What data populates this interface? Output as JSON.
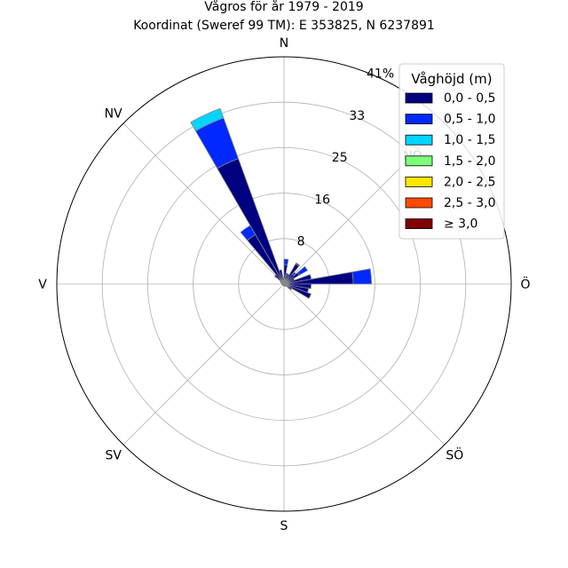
{
  "title_line1": "Vågros för år 1979 - 2019",
  "title_line2": "Koordinat (Sweref 99 TM): E 353825, N 6237891",
  "chart_data": {
    "type": "wind_rose",
    "directions": [
      "N",
      "NÖ",
      "Ö",
      "SÖ",
      "S",
      "SV",
      "V",
      "NV"
    ],
    "radial_ticks": [
      "8",
      "16",
      "25",
      "33",
      "41%"
    ],
    "rmax": 41,
    "bin_edges_deg": [
      0,
      10,
      20,
      30,
      40,
      50,
      60,
      70,
      80,
      90,
      100,
      110,
      120,
      130,
      140,
      150,
      160,
      170,
      180,
      190,
      200,
      210,
      220,
      230,
      240,
      250,
      260,
      270,
      280,
      290,
      300,
      310,
      320,
      330,
      340,
      350,
      360
    ],
    "legend_title": "Våghöjd (m)",
    "series": [
      {
        "name": "0,0 - 0,5",
        "color": "#000080",
        "values": [
          3.5,
          1.6,
          1.9,
          4.2,
          2.4,
          3.2,
          2.0,
          5.0,
          12.5,
          4.9,
          4.5,
          5.2,
          1.6,
          0.6,
          0.5,
          0.4,
          0.4,
          0.3,
          0.3,
          0.3,
          0.3,
          0.3,
          0.3,
          0.3,
          0.3,
          0.3,
          0.4,
          0.4,
          0.5,
          0.6,
          0.8,
          2.2,
          10.3,
          24.1,
          2.6,
          1.0
        ]
      },
      {
        "name": "0,5 - 1,0",
        "color": "#0028ff",
        "values": [
          1.0,
          0.4,
          0.0,
          0.2,
          0.4,
          1.7,
          0.0,
          0.0,
          3.3,
          0.0,
          0.0,
          0.0,
          0.0,
          0.0,
          0.0,
          0.0,
          0.0,
          0.0,
          0.0,
          0.0,
          0.0,
          0.0,
          0.0,
          0.0,
          0.0,
          0.0,
          0.0,
          0.0,
          0.0,
          0.0,
          0.0,
          0.0,
          1.9,
          7.8,
          0.0,
          0.0
        ]
      },
      {
        "name": "1,0 - 1,5",
        "color": "#00d5ff",
        "values": [
          0,
          0,
          0,
          0,
          0,
          0,
          0,
          0,
          0,
          0,
          0,
          0,
          0,
          0,
          0,
          0,
          0,
          0,
          0,
          0,
          0,
          0,
          0,
          0,
          0,
          0,
          0,
          0,
          0,
          0,
          0,
          0,
          0,
          1.8,
          0,
          0
        ]
      },
      {
        "name": "1,5 - 2,0",
        "color": "#7dff7a",
        "values": []
      },
      {
        "name": "2,0 - 2,5",
        "color": "#ffe600",
        "values": []
      },
      {
        "name": "2,5 - 3,0",
        "color": "#ff4a00",
        "values": []
      },
      {
        "name": "≥ 3,0",
        "color": "#800000",
        "values": []
      }
    ],
    "colors": {
      "grid": "#b0b0b0",
      "bar_edge": "#888888"
    }
  }
}
